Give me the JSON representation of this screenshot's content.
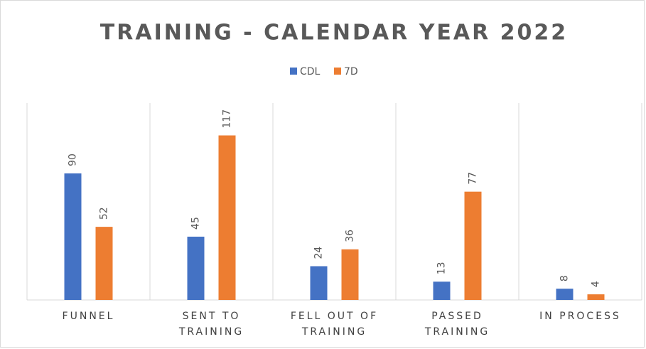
{
  "chart_data": {
    "type": "bar",
    "title": "TRAINING - CALENDAR YEAR 2022",
    "categories": [
      "FUNNEL",
      "SENT TO TRAINING",
      "FELL OUT OF TRAINING",
      "PASSED TRAINING",
      "IN PROCESS"
    ],
    "series": [
      {
        "name": "CDL",
        "color": "#4472c4",
        "values": [
          90,
          45,
          24,
          13,
          8
        ]
      },
      {
        "name": "7D",
        "color": "#ed7d31",
        "values": [
          52,
          117,
          36,
          77,
          4
        ]
      }
    ],
    "ylim": [
      0,
      140
    ],
    "legend": "top"
  }
}
